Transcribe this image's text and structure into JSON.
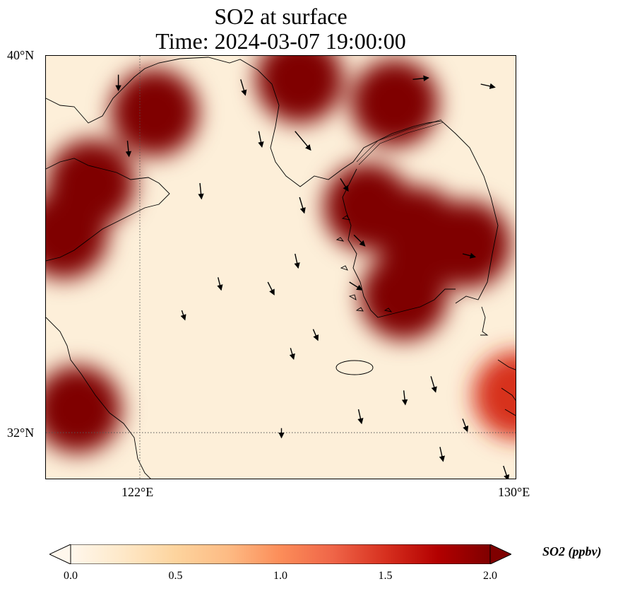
{
  "title": {
    "line1": "SO2 at surface",
    "line2": "Time: 2024-03-07 19:00:00"
  },
  "map": {
    "extent": {
      "lon_min": 119.6,
      "lon_max": 130.0,
      "lat_min": 31.0,
      "lat_max": 40.0
    },
    "lat_ticks": [
      "40°N",
      "32°N"
    ],
    "lon_ticks": [
      "122°E",
      "130°E"
    ],
    "gridlines": {
      "lon": 122,
      "lat": 32,
      "style": "dotted"
    },
    "so2_field": {
      "units": "ppbv",
      "high_regions": [
        {
          "lon": 120.6,
          "lat": 37.3,
          "level": 2.0
        },
        {
          "lon": 120.0,
          "lat": 36.2,
          "level": 2.0
        },
        {
          "lon": 120.3,
          "lat": 32.5,
          "level": 2.0
        },
        {
          "lon": 122.0,
          "lat": 38.8,
          "level": 1.9
        },
        {
          "lon": 125.2,
          "lat": 39.5,
          "level": 2.0
        },
        {
          "lon": 127.3,
          "lat": 39.0,
          "level": 1.9
        },
        {
          "lon": 127.8,
          "lat": 36.3,
          "level": 2.0
        },
        {
          "lon": 126.7,
          "lat": 36.8,
          "level": 2.0
        },
        {
          "lon": 128.9,
          "lat": 36.0,
          "level": 2.0
        },
        {
          "lon": 127.5,
          "lat": 34.9,
          "level": 2.0
        },
        {
          "lon": 130.0,
          "lat": 32.8,
          "level": 1.6
        }
      ]
    },
    "wind_vectors": [
      {
        "lon": 121.2,
        "lat": 39.6,
        "u": 0.0,
        "v": -1.0
      },
      {
        "lon": 123.9,
        "lat": 39.5,
        "u": 0.3,
        "v": -1.0
      },
      {
        "lon": 124.3,
        "lat": 38.4,
        "u": 0.2,
        "v": -1.0
      },
      {
        "lon": 125.1,
        "lat": 38.4,
        "u": 1.0,
        "v": -1.2
      },
      {
        "lon": 123.0,
        "lat": 37.3,
        "u": 0.1,
        "v": -1.0
      },
      {
        "lon": 125.2,
        "lat": 37.0,
        "u": 0.3,
        "v": -1.0
      },
      {
        "lon": 126.1,
        "lat": 37.4,
        "u": 0.5,
        "v": -0.8
      },
      {
        "lon": 126.4,
        "lat": 36.2,
        "u": 0.7,
        "v": -0.7
      },
      {
        "lon": 125.1,
        "lat": 35.8,
        "u": 0.2,
        "v": -0.9
      },
      {
        "lon": 126.3,
        "lat": 35.2,
        "u": 0.8,
        "v": -0.5
      },
      {
        "lon": 124.5,
        "lat": 35.2,
        "u": 0.4,
        "v": -0.8
      },
      {
        "lon": 125.5,
        "lat": 34.2,
        "u": 0.3,
        "v": -0.7
      },
      {
        "lon": 125.0,
        "lat": 33.8,
        "u": 0.2,
        "v": -0.7
      },
      {
        "lon": 128.1,
        "lat": 33.2,
        "u": 0.3,
        "v": -1.0
      },
      {
        "lon": 127.5,
        "lat": 32.9,
        "u": 0.1,
        "v": -0.9
      },
      {
        "lon": 126.5,
        "lat": 32.5,
        "u": 0.2,
        "v": -0.9
      },
      {
        "lon": 128.8,
        "lat": 32.3,
        "u": 0.3,
        "v": -0.8
      },
      {
        "lon": 128.3,
        "lat": 31.7,
        "u": 0.2,
        "v": -0.9
      },
      {
        "lon": 129.7,
        "lat": 31.3,
        "u": 0.3,
        "v": -0.9
      },
      {
        "lon": 124.8,
        "lat": 32.1,
        "u": 0.0,
        "v": -0.6
      },
      {
        "lon": 127.7,
        "lat": 39.5,
        "u": 1.0,
        "v": 0.1
      },
      {
        "lon": 129.2,
        "lat": 39.4,
        "u": 0.9,
        "v": -0.2
      },
      {
        "lon": 128.8,
        "lat": 35.8,
        "u": 0.8,
        "v": -0.2
      },
      {
        "lon": 122.6,
        "lat": 34.6,
        "u": 0.2,
        "v": -0.6
      },
      {
        "lon": 123.4,
        "lat": 35.3,
        "u": 0.2,
        "v": -0.8
      },
      {
        "lon": 121.4,
        "lat": 38.2,
        "u": 0.1,
        "v": -1.0
      }
    ],
    "coastline_color": "#000000"
  },
  "colorbar": {
    "label": "SO2 (ppbv)",
    "ticks": [
      "0.0",
      "0.5",
      "1.0",
      "1.5",
      "2.0"
    ],
    "min": 0.0,
    "max": 2.0,
    "colormap": "OrRd",
    "stops": [
      "#fff7ec",
      "#fee8c8",
      "#fdd49e",
      "#fdbb84",
      "#fc8d59",
      "#ef6548",
      "#d7301f",
      "#b30000",
      "#7f0000"
    ]
  }
}
